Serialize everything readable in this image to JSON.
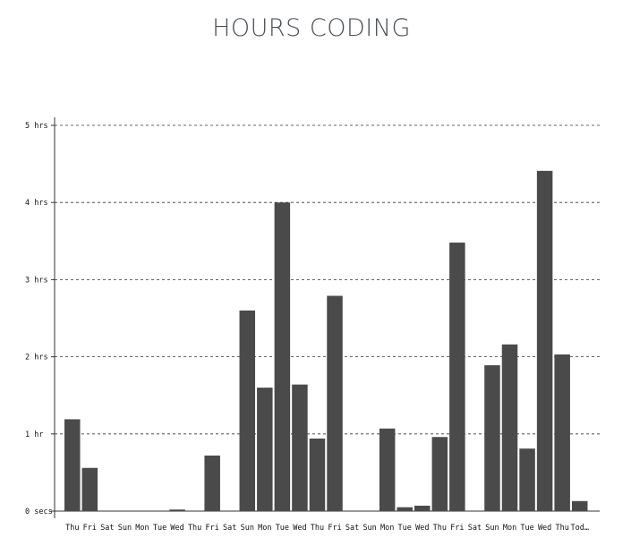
{
  "chart_data": {
    "type": "bar",
    "title": "HOURS CODING",
    "xlabel": "",
    "ylabel": "",
    "ylim": [
      0,
      5
    ],
    "y_ticks": [
      {
        "value": 0,
        "label": "0 secs"
      },
      {
        "value": 1,
        "label": "1 hr"
      },
      {
        "value": 2,
        "label": "2 hrs"
      },
      {
        "value": 3,
        "label": "3 hrs"
      },
      {
        "value": 4,
        "label": "4 hrs"
      },
      {
        "value": 5,
        "label": "5 hrs"
      }
    ],
    "grid": true,
    "bar_color": "#4a4a4a",
    "categories": [
      "Thu",
      "Fri",
      "Sat",
      "Sun",
      "Mon",
      "Tue",
      "Wed",
      "Thu",
      "Fri",
      "Sat",
      "Sun",
      "Mon",
      "Tue",
      "Wed",
      "Thu",
      "Fri",
      "Sat",
      "Sun",
      "Mon",
      "Tue",
      "Wed",
      "Thu",
      "Fri",
      "Sat",
      "Sun",
      "Mon",
      "Tue",
      "Wed",
      "Thu",
      "Tod…"
    ],
    "values": [
      1.19,
      0.56,
      0,
      0,
      0,
      0,
      0.02,
      0,
      0.72,
      0,
      2.6,
      1.6,
      4.0,
      1.64,
      0.94,
      2.79,
      0,
      0,
      1.07,
      0.05,
      0.07,
      0.96,
      3.48,
      0,
      1.89,
      2.16,
      0.81,
      4.41,
      2.03,
      0.13
    ]
  }
}
